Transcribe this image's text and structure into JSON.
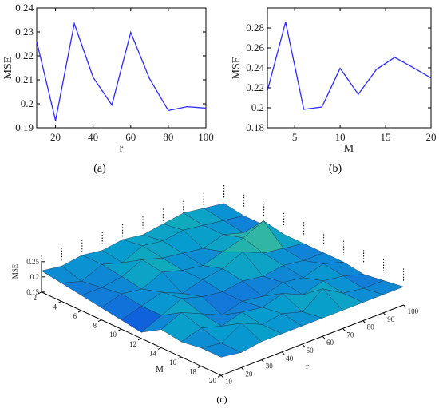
{
  "chart_data": [
    {
      "type": "line",
      "panel_label": "(a)",
      "xlabel": "r",
      "ylabel": "MSE",
      "xlim": [
        10,
        100
      ],
      "ylim": [
        0.19,
        0.24
      ],
      "x_ticks": [
        "20",
        "40",
        "60",
        "80",
        "100"
      ],
      "y_ticks": [
        "0.19",
        "0.2",
        "0.21",
        "0.22",
        "0.23",
        "0.24"
      ],
      "x": [
        10,
        20,
        30,
        40,
        50,
        60,
        70,
        80,
        90,
        100
      ],
      "values": [
        0.226,
        0.193,
        0.2335,
        0.211,
        0.1995,
        0.2298,
        0.2105,
        0.1972,
        0.1988,
        0.1982
      ],
      "color": "#2b2bff"
    },
    {
      "type": "line",
      "panel_label": "(b)",
      "xlabel": "M",
      "ylabel": "MSE",
      "xlim": [
        2,
        20
      ],
      "ylim": [
        0.18,
        0.3
      ],
      "x_ticks": [
        "5",
        "10",
        "15",
        "20"
      ],
      "y_ticks": [
        "0.18",
        "0.2",
        "0.22",
        "0.24",
        "0.26",
        "0.28"
      ],
      "x": [
        2,
        4,
        6,
        8,
        10,
        12,
        14,
        16,
        18,
        20
      ],
      "values": [
        0.217,
        0.286,
        0.1985,
        0.2008,
        0.2395,
        0.2135,
        0.2385,
        0.2505,
        0.2405,
        0.2298
      ],
      "color": "#2b2bff"
    },
    {
      "type": "surface",
      "panel_label": "(c)",
      "xlabel": "M",
      "ylabel": "r",
      "zlabel": "MSE",
      "M_ticks": [
        "2",
        "4",
        "6",
        "8",
        "10",
        "12",
        "14",
        "16",
        "18",
        "20"
      ],
      "r_ticks": [
        "10",
        "20",
        "30",
        "40",
        "50",
        "60",
        "70",
        "80",
        "90",
        "100"
      ],
      "z_ticks": [
        "0.15",
        "0.2",
        "0.25"
      ],
      "M": [
        2,
        4,
        6,
        8,
        10,
        12,
        14,
        16,
        18,
        20
      ],
      "r": [
        10,
        20,
        30,
        40,
        50,
        60,
        70,
        80,
        90,
        100
      ],
      "z": [
        [
          0.22,
          0.21,
          0.22,
          0.21,
          0.22,
          0.21,
          0.22,
          0.23,
          0.22,
          0.21
        ],
        [
          0.21,
          0.19,
          0.22,
          0.2,
          0.23,
          0.22,
          0.23,
          0.22,
          0.21,
          0.2
        ],
        [
          0.2,
          0.2,
          0.21,
          0.24,
          0.22,
          0.21,
          0.2,
          0.22,
          0.2,
          0.2
        ],
        [
          0.19,
          0.21,
          0.2,
          0.23,
          0.21,
          0.2,
          0.22,
          0.24,
          0.27,
          0.2
        ],
        [
          0.18,
          0.2,
          0.22,
          0.19,
          0.21,
          0.22,
          0.25,
          0.22,
          0.21,
          0.2
        ],
        [
          0.17,
          0.2,
          0.23,
          0.21,
          0.2,
          0.21,
          0.2,
          0.21,
          0.2,
          0.2
        ],
        [
          0.21,
          0.24,
          0.21,
          0.18,
          0.2,
          0.19,
          0.21,
          0.2,
          0.22,
          0.2
        ],
        [
          0.2,
          0.22,
          0.2,
          0.22,
          0.21,
          0.23,
          0.2,
          0.22,
          0.21,
          0.19
        ],
        [
          0.21,
          0.2,
          0.24,
          0.21,
          0.22,
          0.2,
          0.25,
          0.21,
          0.2,
          0.2
        ],
        [
          0.21,
          0.2,
          0.21,
          0.21,
          0.21,
          0.21,
          0.21,
          0.21,
          0.21,
          0.21
        ]
      ],
      "colormap": "parula"
    }
  ]
}
